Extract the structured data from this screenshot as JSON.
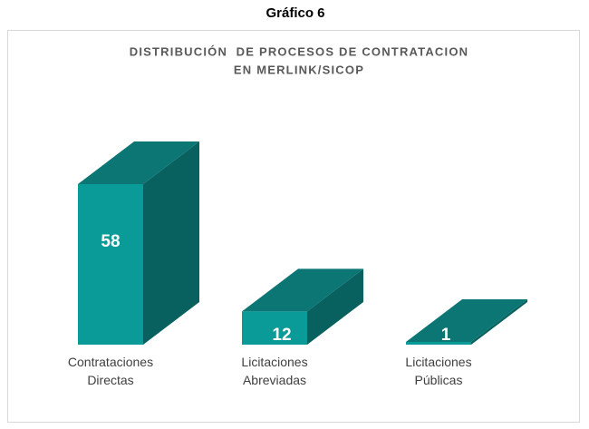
{
  "header": "Gráfico 6",
  "chart_data": {
    "type": "bar3d",
    "title": [
      "DISTRIBUCIÓN  DE PROCESOS DE CONTRATACION",
      "EN MERLINK/SICOP"
    ],
    "categories": [
      "Contrataciones Directas",
      "Licitaciones Abreviadas",
      "Licitaciones Públicas"
    ],
    "values": [
      58,
      12,
      1
    ],
    "color": "#0a9a97"
  }
}
